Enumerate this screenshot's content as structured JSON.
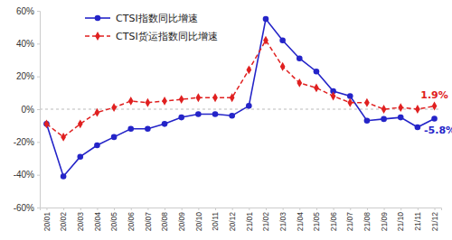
{
  "chart_data": {
    "type": "line",
    "categories": [
      "20/01",
      "20/02",
      "20/03",
      "20/04",
      "20/05",
      "20/06",
      "20/07",
      "20/08",
      "20/09",
      "20/10",
      "20/11",
      "20/12",
      "21/01",
      "21/02",
      "21/03",
      "21/04",
      "21/05",
      "21/06",
      "21/07",
      "21/08",
      "21/09",
      "21/10",
      "21/11",
      "21/12"
    ],
    "series": [
      {
        "name": "CTSI指数同比增速",
        "color": "#2424c8",
        "marker": "circle",
        "line_style": "solid",
        "values": [
          -9,
          -41,
          -29,
          -22,
          -17,
          -12,
          -12,
          -9,
          -5,
          -3,
          -3,
          -4,
          2,
          55,
          42,
          31,
          23,
          11,
          8,
          -7,
          -6,
          -5,
          -11,
          -5.8
        ]
      },
      {
        "name": "CTSI货运指数同比增速",
        "color": "#e02020",
        "marker": "diamond",
        "line_style": "dashed",
        "values": [
          -9,
          -17,
          -9,
          -2,
          1,
          5,
          4,
          5,
          6,
          7,
          7,
          7,
          24,
          42,
          26,
          16,
          13,
          8,
          4,
          4,
          0,
          1,
          0,
          1.9
        ]
      }
    ],
    "ylim": [
      -60,
      60
    ],
    "yticks": [
      {
        "value": 60,
        "label": "60%"
      },
      {
        "value": 40,
        "label": "40%"
      },
      {
        "value": 20,
        "label": "20%"
      },
      {
        "value": 0,
        "label": "0%"
      },
      {
        "value": -20,
        "label": "-20%"
      },
      {
        "value": -40,
        "label": "-40%"
      },
      {
        "value": -60,
        "label": "-60%"
      }
    ],
    "grid": false,
    "legend": "upper left",
    "annotations": [
      {
        "text": "1.9%",
        "x": "21/12",
        "y": 1.9,
        "series": "CTSI货运指数同比增速"
      },
      {
        "text": "-5.8%",
        "x": "21/12",
        "y": -5.8,
        "series": "CTSI指数同比增速"
      }
    ]
  }
}
